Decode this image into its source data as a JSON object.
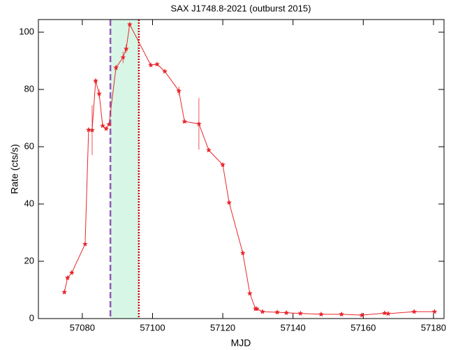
{
  "chart_data": {
    "type": "line",
    "title": "SAX J1748.8-2021 (outburst 2015)",
    "xlabel": "MJD",
    "ylabel": "Rate (cts/s)",
    "x": [
      57074.9,
      57075.8,
      57077.0,
      57080.8,
      57081.8,
      57082.8,
      57083.8,
      57084.8,
      57085.8,
      57086.8,
      57087.6,
      57089.6,
      57091.6,
      57092.5,
      57093.5,
      57099.5,
      57101.3,
      57103.5,
      57107.5,
      57109.1,
      57113.2,
      57116.0,
      57120.0,
      57121.8,
      57125.7,
      57127.7,
      57129.3,
      57129.7,
      57131.3,
      57135.5,
      57138.1,
      57142.1,
      57148.0,
      57153.8,
      57159.6,
      57166.1,
      57167.1,
      57174.5,
      57180.3
    ],
    "series": [
      {
        "name": "Rate",
        "color": "#e8262b",
        "values": [
          9.2,
          14.2,
          16,
          26,
          65.9,
          65.8,
          83,
          78.5,
          67.3,
          66.3,
          67.8,
          87.6,
          91.2,
          94.2,
          102.7,
          88.5,
          88.8,
          86.3,
          79.5,
          68.8,
          68,
          58.8,
          53.7,
          40.5,
          22.9,
          8.8,
          3.4,
          3.4,
          2.4,
          2.2,
          2,
          1.8,
          1.5,
          1.5,
          1.2,
          1.9,
          1.7,
          2.4,
          2.4
        ],
        "errors": [
          0.5,
          0.5,
          0.5,
          0.5,
          0.5,
          8.7,
          0.8,
          1.5,
          0.5,
          0.5,
          0.5,
          1,
          2,
          1.5,
          0.5,
          0.5,
          0.5,
          0.5,
          1.5,
          0.5,
          9,
          0.5,
          0.5,
          0.5,
          0.5,
          0.5,
          0.5,
          0.5,
          0.3,
          0.3,
          0.3,
          0.3,
          0.3,
          0.3,
          0.3,
          0.3,
          0.3,
          0.3,
          0.3
        ]
      }
    ],
    "xlim": [
      57067.5,
      57183
    ],
    "xticks": [
      57080,
      57100,
      57120,
      57140,
      57160,
      57180
    ],
    "ylim": [
      0,
      104.4
    ],
    "yticks": [
      0,
      20,
      40,
      60,
      80,
      100
    ],
    "shaded_region": {
      "x": [
        57088.0,
        57096.1
      ],
      "color": "#d8f6e6"
    },
    "vlines": [
      {
        "x": 57088.0,
        "color": "#8e5bb5",
        "style": "dashed"
      },
      {
        "x": 57096.1,
        "color": "#cc0000",
        "style": "dotted"
      }
    ]
  }
}
